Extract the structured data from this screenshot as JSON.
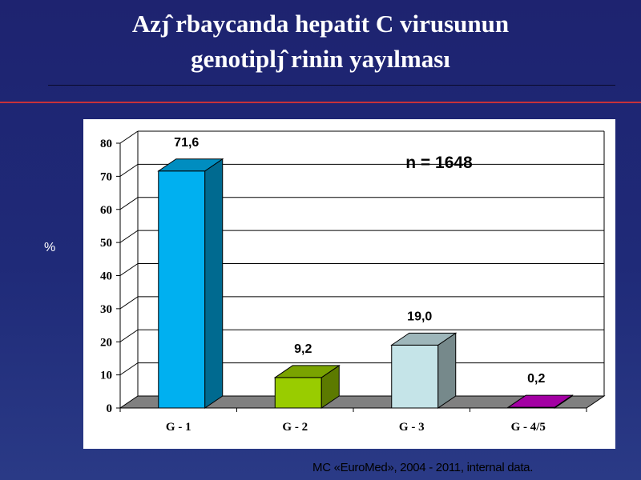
{
  "title_line1": "Azȷ̂ rbaycanda hepatit C virusunun",
  "title_line2": "genotiplȷ̂ rinin yayılması",
  "ylabel": "%",
  "annotation": "n = 1648",
  "source": "MC «EuroMed», 2004 - 2011, internal data.",
  "chart_data": {
    "type": "bar",
    "title": "",
    "xlabel": "",
    "ylabel": "%",
    "categories": [
      "G - 1",
      "G - 2",
      "G - 3",
      "G - 4/5"
    ],
    "values": [
      71.6,
      9.2,
      19.0,
      0.2
    ],
    "value_labels": [
      "71,6",
      "9,2",
      "19,0",
      "0,2"
    ],
    "ylim": [
      0,
      80
    ],
    "yticks": [
      0,
      10,
      20,
      30,
      40,
      50,
      60,
      70,
      80
    ],
    "grid": true,
    "style": "3d-column",
    "colors": [
      "#00b0f0",
      "#99cc00",
      "#c5e4e8",
      "#cc00cc"
    ]
  }
}
